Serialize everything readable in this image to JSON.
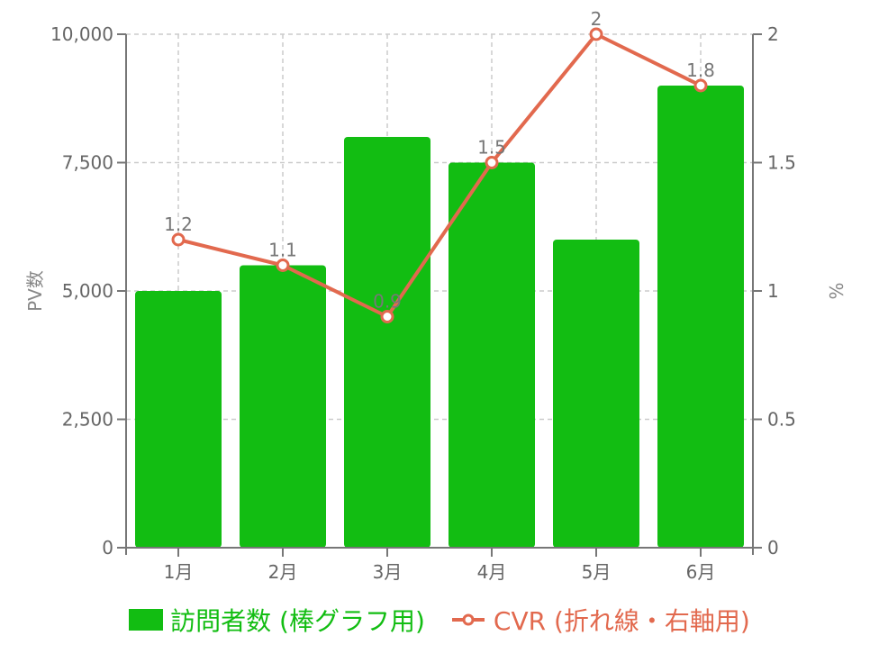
{
  "chart_data": {
    "type": "bar",
    "categories": [
      "1月",
      "2月",
      "3月",
      "4月",
      "5月",
      "6月"
    ],
    "series": [
      {
        "name": "訪問者数 (棒グラフ用)",
        "type": "bar",
        "axis": "left",
        "values": [
          5000,
          5500,
          8000,
          7500,
          6000,
          9000
        ],
        "color": "#12bd12"
      },
      {
        "name": "CVR (折れ線・右軸用)",
        "type": "line",
        "axis": "right",
        "values": [
          1.2,
          1.1,
          0.9,
          1.5,
          2.0,
          1.8
        ],
        "data_labels": [
          "1.2",
          "1.1",
          "0.9",
          "1.5",
          "2",
          "1.8"
        ],
        "color": "#e2694e"
      }
    ],
    "y_left": {
      "label": "PV数",
      "ylim": [
        0,
        10000
      ],
      "ticks": [
        "0",
        "2,500",
        "5,000",
        "7,500",
        "10,000"
      ],
      "tick_values": [
        0,
        2500,
        5000,
        7500,
        10000
      ]
    },
    "y_right": {
      "label": "%",
      "ylim": [
        0,
        2
      ],
      "ticks": [
        "0",
        "0.5",
        "1",
        "1.5",
        "2"
      ],
      "tick_values": [
        0,
        0.5,
        1,
        1.5,
        2
      ]
    },
    "grid": true,
    "grid_style": "dashed",
    "legend": "bottom"
  }
}
